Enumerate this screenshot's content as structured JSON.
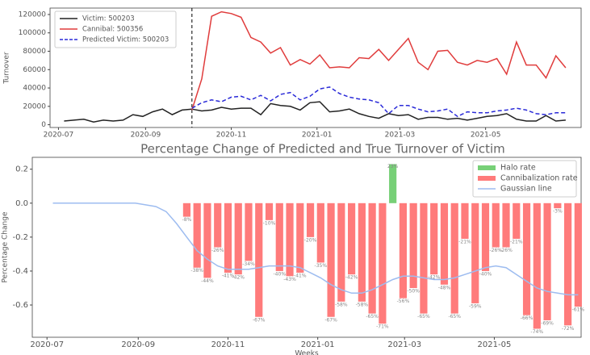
{
  "chart_data": [
    {
      "type": "line",
      "y_label": "Turnover",
      "x": [
        "2020-07-05",
        "2020-07-12",
        "2020-07-19",
        "2020-07-26",
        "2020-08-02",
        "2020-08-09",
        "2020-08-16",
        "2020-08-23",
        "2020-08-30",
        "2020-09-06",
        "2020-09-13",
        "2020-09-20",
        "2020-09-27",
        "2020-10-04",
        "2020-10-11",
        "2020-10-18",
        "2020-10-25",
        "2020-11-01",
        "2020-11-08",
        "2020-11-15",
        "2020-11-22",
        "2020-11-29",
        "2020-12-06",
        "2020-12-13",
        "2020-12-20",
        "2020-12-27",
        "2021-01-03",
        "2021-01-10",
        "2021-01-17",
        "2021-01-24",
        "2021-01-31",
        "2021-02-07",
        "2021-02-14",
        "2021-02-21",
        "2021-02-28",
        "2021-03-07",
        "2021-03-14",
        "2021-03-21",
        "2021-03-28",
        "2021-04-04",
        "2021-04-11",
        "2021-04-18",
        "2021-04-25",
        "2021-05-02",
        "2021-05-09",
        "2021-05-16",
        "2021-05-23",
        "2021-05-30",
        "2021-06-06",
        "2021-06-13",
        "2021-06-20",
        "2021-06-27"
      ],
      "series": [
        {
          "name": "Victim: 500203",
          "color": "#222222",
          "values": [
            4000,
            5000,
            6000,
            3000,
            5000,
            4000,
            5000,
            11000,
            9000,
            14000,
            17000,
            11000,
            16000,
            17000,
            15000,
            16000,
            19000,
            17000,
            18000,
            18000,
            11000,
            23000,
            21000,
            20000,
            16000,
            24000,
            25000,
            14000,
            15000,
            17000,
            12000,
            9000,
            7000,
            12000,
            10000,
            11000,
            6000,
            8000,
            8000,
            6000,
            7000,
            5000,
            7000,
            9000,
            10000,
            12000,
            6000,
            4000,
            4000,
            10000,
            4000,
            5000
          ]
        },
        {
          "name": "Cannibal: 500356",
          "color": "#e03c3c",
          "values": [
            null,
            null,
            null,
            null,
            null,
            null,
            null,
            null,
            null,
            null,
            null,
            null,
            null,
            16000,
            50000,
            118000,
            123000,
            121000,
            117000,
            95000,
            90000,
            78000,
            84000,
            65000,
            71000,
            66000,
            76000,
            62000,
            63000,
            62000,
            73000,
            72000,
            82000,
            70000,
            82000,
            94000,
            68000,
            60000,
            80000,
            81000,
            68000,
            65000,
            70000,
            68000,
            72000,
            55000,
            90000,
            65000,
            65000,
            51000,
            75000,
            62000
          ]
        },
        {
          "name": "Predicted Victim: 500203",
          "color": "#2a2ad8",
          "dash": true,
          "values": [
            null,
            null,
            null,
            null,
            null,
            null,
            null,
            null,
            null,
            null,
            null,
            null,
            null,
            18000,
            24000,
            27000,
            25000,
            30000,
            31000,
            27000,
            32000,
            26000,
            33000,
            35000,
            27000,
            31000,
            39000,
            41000,
            34000,
            30000,
            28000,
            27000,
            24000,
            12000,
            21000,
            21000,
            17000,
            14000,
            15000,
            17000,
            9000,
            14000,
            13000,
            13000,
            15000,
            16000,
            18000,
            16000,
            12000,
            11000,
            13000,
            13000
          ]
        }
      ],
      "vline": "2020-10-04",
      "xlim": [
        "2020-06-25",
        "2021-07-08"
      ],
      "xticks": [
        "2020-07",
        "2020-09",
        "2020-11",
        "2021-01",
        "2021-03",
        "2021-05"
      ],
      "ylim": [
        -3000,
        127000
      ],
      "yticks": [
        0,
        20000,
        40000,
        60000,
        80000,
        100000,
        120000
      ],
      "legend": "upper-left"
    },
    {
      "type": "bar",
      "title": "Percentage Change of Predicted and True Turnover of Victim",
      "y_label": "Percentage Change",
      "x_label": "Weeks",
      "x": [
        "2020-07-05",
        "2020-07-12",
        "2020-07-19",
        "2020-07-26",
        "2020-08-02",
        "2020-08-09",
        "2020-08-16",
        "2020-08-23",
        "2020-08-30",
        "2020-09-06",
        "2020-09-13",
        "2020-09-20",
        "2020-09-27",
        "2020-10-04",
        "2020-10-11",
        "2020-10-18",
        "2020-10-25",
        "2020-11-01",
        "2020-11-08",
        "2020-11-15",
        "2020-11-22",
        "2020-11-29",
        "2020-12-06",
        "2020-12-13",
        "2020-12-20",
        "2020-12-27",
        "2021-01-03",
        "2021-01-10",
        "2021-01-17",
        "2021-01-24",
        "2021-01-31",
        "2021-02-07",
        "2021-02-14",
        "2021-02-21",
        "2021-02-28",
        "2021-03-07",
        "2021-03-14",
        "2021-03-21",
        "2021-03-28",
        "2021-04-04",
        "2021-04-11",
        "2021-04-18",
        "2021-04-25",
        "2021-05-02",
        "2021-05-09",
        "2021-05-16",
        "2021-05-23",
        "2021-05-30",
        "2021-06-06",
        "2021-06-13",
        "2021-06-20",
        "2021-06-27"
      ],
      "series": [
        {
          "name": "Halo rate",
          "type": "bar",
          "color": "#77d077",
          "values": [
            null,
            null,
            null,
            null,
            null,
            null,
            null,
            null,
            null,
            null,
            null,
            null,
            null,
            null,
            null,
            null,
            null,
            null,
            null,
            null,
            null,
            null,
            null,
            null,
            null,
            null,
            null,
            null,
            null,
            null,
            null,
            null,
            null,
            0.23,
            null,
            null,
            null,
            null,
            null,
            null,
            null,
            null,
            null,
            null,
            null,
            null,
            null,
            null,
            null,
            null,
            null,
            null
          ],
          "value_labels": [
            null,
            null,
            null,
            null,
            null,
            null,
            null,
            null,
            null,
            null,
            null,
            null,
            null,
            null,
            null,
            null,
            null,
            null,
            null,
            null,
            null,
            null,
            null,
            null,
            null,
            null,
            null,
            null,
            null,
            null,
            null,
            null,
            null,
            "23%",
            null,
            null,
            null,
            null,
            null,
            null,
            null,
            null,
            null,
            null,
            null,
            null,
            null,
            null,
            null,
            null,
            null,
            null
          ]
        },
        {
          "name": "Cannibalization rate",
          "type": "bar",
          "color": "#ff7b7b",
          "values": [
            null,
            null,
            null,
            null,
            null,
            null,
            null,
            null,
            null,
            null,
            null,
            null,
            null,
            -0.08,
            -0.38,
            -0.44,
            -0.26,
            -0.41,
            -0.42,
            -0.34,
            -0.67,
            -0.1,
            -0.4,
            -0.43,
            -0.41,
            -0.2,
            -0.35,
            -0.67,
            -0.58,
            -0.42,
            -0.58,
            -0.65,
            -0.71,
            null,
            -0.56,
            -0.5,
            -0.65,
            -0.42,
            -0.48,
            -0.65,
            -0.21,
            -0.59,
            -0.4,
            -0.26,
            -0.26,
            -0.21,
            -0.66,
            -0.74,
            -0.69,
            -0.03,
            -0.72,
            -0.61
          ],
          "value_labels": [
            null,
            null,
            null,
            null,
            null,
            null,
            null,
            null,
            null,
            null,
            null,
            null,
            null,
            "-8%",
            "-38%",
            "-44%",
            "-26%",
            "-41%",
            "-42%",
            "-34%",
            "-67%",
            "-10%",
            "-40%",
            "-43%",
            "-41%",
            "-20%",
            "-35%",
            "-67%",
            "-58%",
            "-42%",
            "-58%",
            "-65%",
            "-71%",
            null,
            "-56%",
            "-50%",
            "-65%",
            "-42%",
            "-48%",
            "-65%",
            "-21%",
            "-59%",
            "-40%",
            "-26%",
            "-26%",
            "-21%",
            "-66%",
            "-74%",
            "-69%",
            "-3%",
            "-72%",
            "-61%"
          ]
        },
        {
          "name": "Gaussian line",
          "type": "line",
          "color": "#9dbcf0",
          "values": [
            0,
            0,
            0,
            0,
            0,
            0,
            0,
            0,
            0,
            -0.01,
            -0.02,
            -0.05,
            -0.12,
            -0.2,
            -0.28,
            -0.33,
            -0.37,
            -0.39,
            -0.39,
            -0.39,
            -0.38,
            -0.37,
            -0.37,
            -0.37,
            -0.38,
            -0.41,
            -0.44,
            -0.48,
            -0.51,
            -0.53,
            -0.53,
            -0.51,
            -0.48,
            -0.45,
            -0.43,
            -0.43,
            -0.44,
            -0.45,
            -0.45,
            -0.44,
            -0.42,
            -0.4,
            -0.38,
            -0.37,
            -0.38,
            -0.42,
            -0.46,
            -0.5,
            -0.52,
            -0.53,
            -0.54,
            -0.54
          ]
        }
      ],
      "xlim": [
        "2020-06-21",
        "2021-06-29"
      ],
      "xticks": [
        "2020-07",
        "2020-09",
        "2020-11",
        "2021-01",
        "2021-03",
        "2021-05"
      ],
      "ylim": [
        -0.79,
        0.27
      ],
      "yticks": [
        {
          "value": 0.2,
          "label": "0.2"
        },
        {
          "value": 0,
          "label": "0.0"
        },
        -0.2,
        -0.4,
        -0.6
      ],
      "legend": "upper-right"
    }
  ]
}
